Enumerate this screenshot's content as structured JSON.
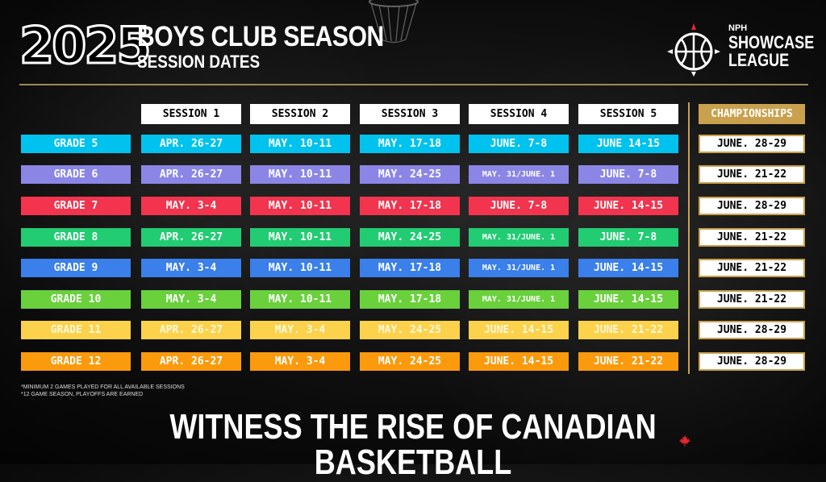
{
  "header": {
    "year": "2025",
    "title": "BOYS CLUB SEASON",
    "subtitle": "SESSION DATES"
  },
  "logo": {
    "top": "NPH",
    "line1": "SHOWCASE",
    "line2": "LEAGUE",
    "icon": "basketball-compass-icon"
  },
  "schedule": {
    "sessions": [
      "SESSION 1",
      "SESSION 2",
      "SESSION 3",
      "SESSION 4",
      "SESSION 5"
    ],
    "championships_label": "CHAMPIONSHIPS",
    "rows": [
      {
        "grade": "GRADE 5",
        "color": "#00c2ee",
        "dates": [
          "APR. 26-27",
          "MAY. 10-11",
          "MAY. 17-18",
          "JUNE. 7-8",
          "JUNE 14-15"
        ],
        "championship": "JUNE. 28-29"
      },
      {
        "grade": "GRADE 6",
        "color": "#8b86e6",
        "dates": [
          "APR. 26-27",
          "MAY. 10-11",
          "MAY. 24-25",
          "MAY. 31/JUNE. 1",
          "JUNE. 7-8"
        ],
        "championship": "JUNE. 21-22"
      },
      {
        "grade": "GRADE 7",
        "color": "#f2344e",
        "dates": [
          "MAY. 3-4",
          "MAY. 10-11",
          "MAY. 17-18",
          "JUNE. 7-8",
          "JUNE. 14-15"
        ],
        "championship": "JUNE. 28-29"
      },
      {
        "grade": "GRADE 8",
        "color": "#22cc72",
        "dates": [
          "APR. 26-27",
          "MAY. 10-11",
          "MAY. 24-25",
          "MAY. 31/JUNE. 1",
          "JUNE. 7-8"
        ],
        "championship": "JUNE. 21-22"
      },
      {
        "grade": "GRADE 9",
        "color": "#3a7fea",
        "dates": [
          "MAY. 3-4",
          "MAY. 10-11",
          "MAY. 17-18",
          "MAY. 31/JUNE. 1",
          "JUNE. 14-15"
        ],
        "championship": "JUNE. 21-22"
      },
      {
        "grade": "GRADE 10",
        "color": "#6ad13d",
        "dates": [
          "MAY. 3-4",
          "MAY. 10-11",
          "MAY. 17-18",
          "MAY. 31/JUNE. 1",
          "JUNE. 14-15"
        ],
        "championship": "JUNE. 21-22"
      },
      {
        "grade": "GRADE 11",
        "color": "#fcd24c",
        "dates": [
          "APR. 26-27",
          "MAY. 3-4",
          "MAY. 24-25",
          "JUNE. 14-15",
          "JUNE. 21-22"
        ],
        "championship": "JUNE. 28-29"
      },
      {
        "grade": "GRADE 12",
        "color": "#fb9a0c",
        "dates": [
          "APR. 26-27",
          "MAY. 3-4",
          "MAY. 24-25",
          "JUNE. 14-15",
          "JUNE. 21-22"
        ],
        "championship": "JUNE. 28-29"
      }
    ]
  },
  "colors": {
    "gold": "#c9a14e",
    "background": "#141414"
  },
  "footnotes": [
    "*MINIMUM 2 GAMES PLAYED FOR ALL AVAILABLE SESSIONS",
    "*12 GAME SEASON, PLAYOFFS ARE EARNED"
  ],
  "tagline": "WITNESS THE RISE OF CANADIAN BASKETBALL",
  "tagline_icon": "maple-leaf-icon"
}
